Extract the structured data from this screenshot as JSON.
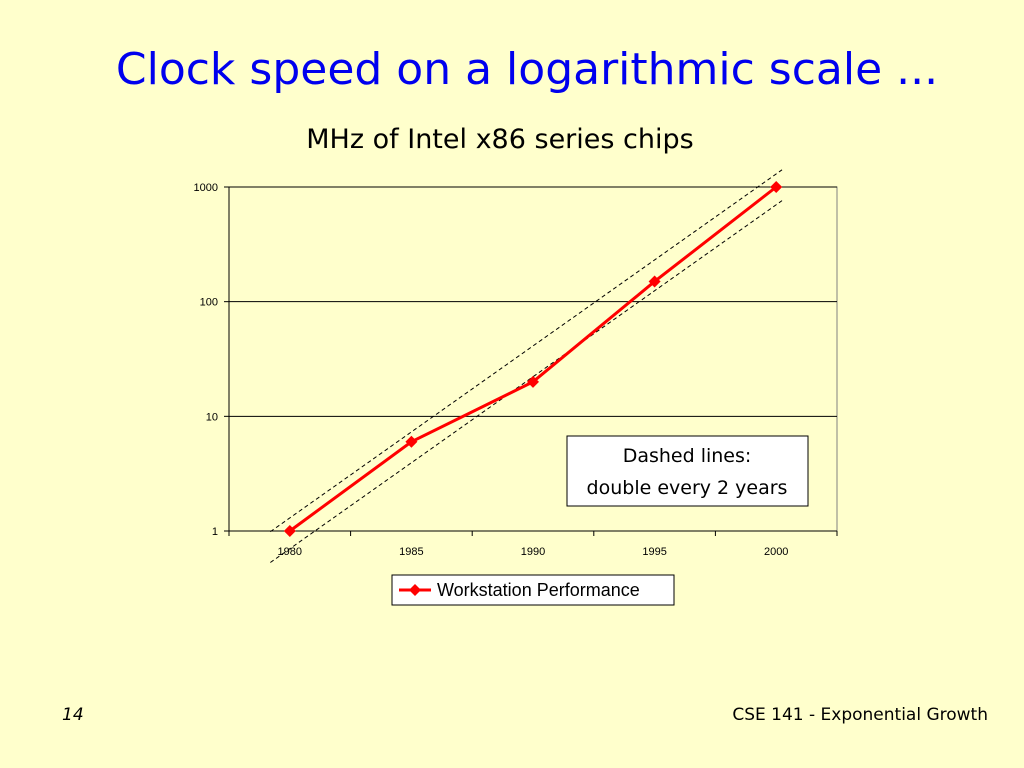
{
  "slide": {
    "title": "Clock speed on a logarithmic scale ...",
    "page_number": "14",
    "course_label": "CSE 141 - Exponential Growth"
  },
  "colors": {
    "background": "#ffffcc",
    "title": "#0000ee",
    "series": "#ff0000"
  },
  "chart_data": {
    "type": "line",
    "title": "MHz of Intel x86 series chips",
    "xlabel": "",
    "ylabel": "",
    "y_scale": "log",
    "ylim": [
      1,
      1000
    ],
    "xlim": [
      1977.5,
      2002.5
    ],
    "y_ticks": [
      "1",
      "10",
      "100",
      "1000"
    ],
    "x_ticks": [
      "1980",
      "1985",
      "1990",
      "1995",
      "2000"
    ],
    "grid": "horizontal major gridlines",
    "series": [
      {
        "name": "Workstation Performance",
        "x": [
          1980,
          1985,
          1990,
          1995,
          2000
        ],
        "y": [
          1,
          6,
          20,
          150,
          1000
        ]
      }
    ],
    "reference_lines": [
      {
        "style": "dashed",
        "from": [
          1980,
          1.3
        ],
        "to": [
          2000,
          1300
        ]
      },
      {
        "style": "dashed",
        "from": [
          1980,
          0.7
        ],
        "to": [
          2000,
          700
        ]
      }
    ],
    "annotation": {
      "line1": "Dashed lines:",
      "line2": "double every 2 years"
    },
    "legend": {
      "position": "bottom-center",
      "label": "Workstation Performance"
    }
  }
}
